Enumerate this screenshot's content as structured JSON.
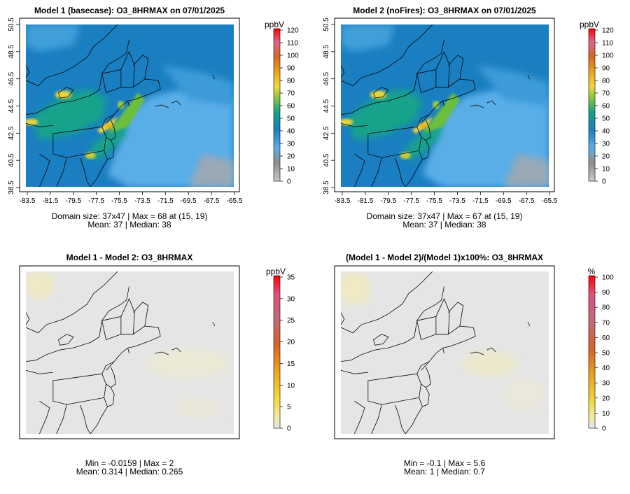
{
  "panels": [
    {
      "title": "Model 1 (basecase): O3_8HRMAX on 07/01/2025",
      "unit": "ppbV",
      "x_ticks": [
        "-83.5",
        "-81.5",
        "-79.5",
        "-77.5",
        "-75.5",
        "-73.5",
        "-71.5",
        "-69.5",
        "-67.5",
        "-65.5"
      ],
      "y_ticks": [
        "38.5",
        "40.5",
        "42.5",
        "44.5",
        "46.5",
        "48.5",
        "50.5"
      ],
      "colorbar_ticks": [
        "0",
        "10",
        "20",
        "30",
        "40",
        "50",
        "60",
        "70",
        "80",
        "90",
        "100",
        "110",
        "120"
      ],
      "stats_line1": "Domain size: 37x47 | Max = 68 at (15, 19)",
      "stats_line2": "Mean: 37 |  Median: 38"
    },
    {
      "title": "Model 2 (noFires): O3_8HRMAX on 07/01/2025",
      "unit": "ppbV",
      "x_ticks": [
        "-83.5",
        "-81.5",
        "-79.5",
        "-77.5",
        "-75.5",
        "-73.5",
        "-71.5",
        "-69.5",
        "-67.5",
        "-65.5"
      ],
      "y_ticks": [
        "38.5",
        "40.5",
        "42.5",
        "44.5",
        "46.5",
        "48.5",
        "50.5"
      ],
      "colorbar_ticks": [
        "0",
        "10",
        "20",
        "30",
        "40",
        "50",
        "60",
        "70",
        "80",
        "90",
        "100",
        "110",
        "120"
      ],
      "stats_line1": "Domain size: 37x47 | Max = 67 at (15, 19)",
      "stats_line2": "Mean: 37 |  Median: 38"
    },
    {
      "title": "Model 1 - Model 2: O3_8HRMAX",
      "unit": "ppbV",
      "colorbar_ticks": [
        "0",
        "5",
        "10",
        "15",
        "20",
        "25",
        "30",
        "35"
      ],
      "stats_line1": "Min = -0.0159 | Max = 2",
      "stats_line2": "Mean: 0.314 |  Median: 0.265"
    },
    {
      "title": "(Model 1 - Model 2)/(Model 1)x100%: O3_8HRMAX",
      "unit": "%",
      "colorbar_ticks": [
        "0",
        "10",
        "20",
        "30",
        "40",
        "50",
        "60",
        "70",
        "80",
        "90",
        "100"
      ],
      "stats_line1": "Min = -0.1 | Max = 5.6",
      "stats_line2": "Mean: 1 |  Median: 0.7"
    }
  ],
  "colors": {
    "conc_scale": [
      "#a9a9a9",
      "#8fb9d8",
      "#4aa6e3",
      "#1e8ed0",
      "#0f76b6",
      "#12a38a",
      "#6cbf3e",
      "#e8d43a",
      "#e9b21c",
      "#e38a16",
      "#d86a2a",
      "#e0406e",
      "#ff0000"
    ],
    "diff_scale": [
      "#e6e6e6",
      "#f3ea9a",
      "#f2d83a",
      "#eeb21a",
      "#e48a16",
      "#d8632a",
      "#c94f6a",
      "#e0507a",
      "#ff0000"
    ],
    "ocean": "#5aaee8",
    "land_base": "#1a7fc0",
    "diff_field": "#e5e5e5"
  }
}
